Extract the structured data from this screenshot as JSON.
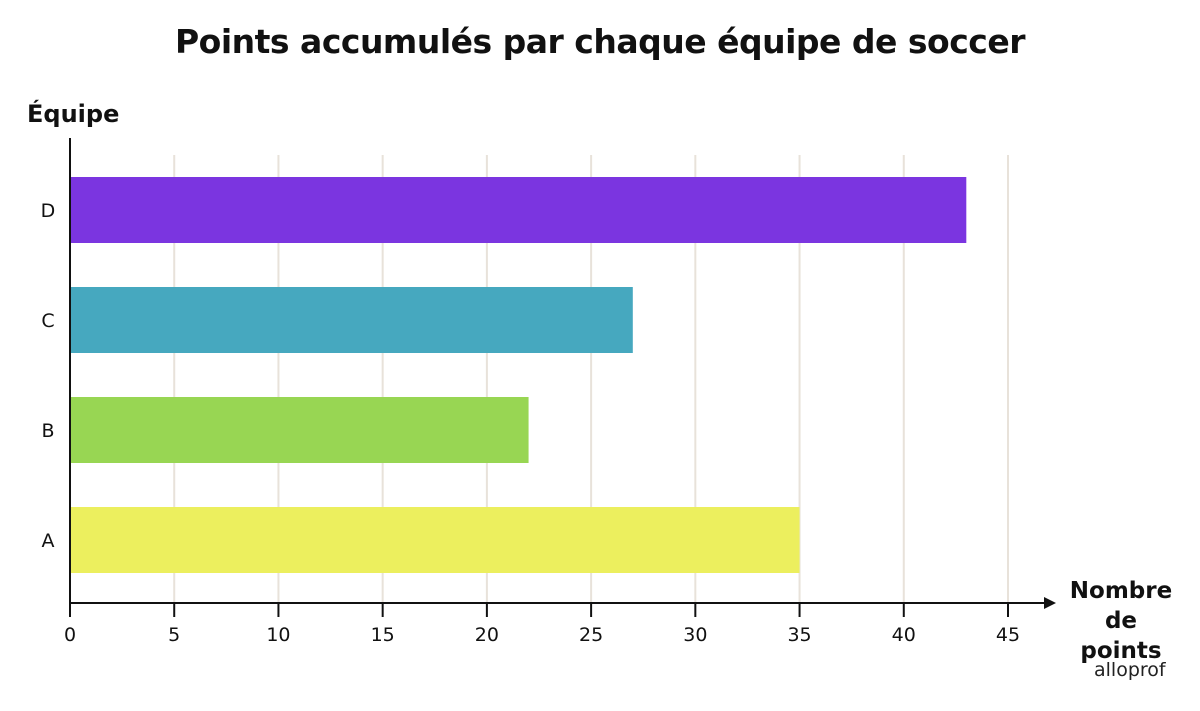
{
  "title": "Points accumulés par chaque équipe de soccer",
  "y_axis_label": "Équipe",
  "x_axis_label_line1": "Nombre",
  "x_axis_label_line2": "de points",
  "brand": "alloprof",
  "colors": {
    "D": "#7B35E0",
    "C": "#46A8BF",
    "B": "#98D653",
    "A": "#ECEF5E",
    "grid": "#E8E2DA",
    "axis": "#111111"
  },
  "chart_data": {
    "type": "bar",
    "orientation": "horizontal",
    "title": "Points accumulés par chaque équipe de soccer",
    "xlabel": "Nombre de points",
    "ylabel": "Équipe",
    "categories": [
      "A",
      "B",
      "C",
      "D"
    ],
    "values": [
      35,
      22,
      27,
      43
    ],
    "xlim": [
      0,
      45
    ],
    "xticks": [
      0,
      5,
      10,
      15,
      20,
      25,
      30,
      35,
      40,
      45
    ],
    "grid": "vertical",
    "legend": "none"
  }
}
